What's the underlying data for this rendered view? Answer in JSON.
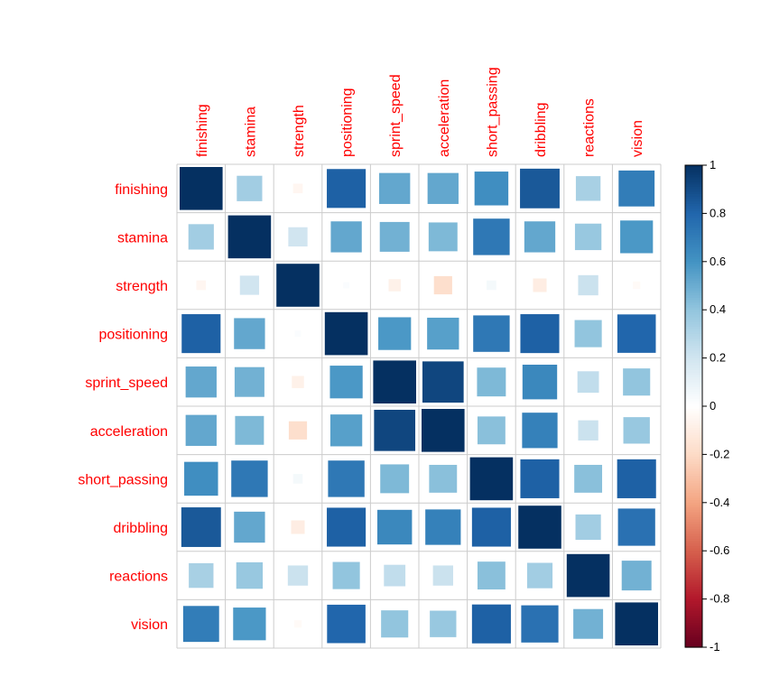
{
  "chart_data": {
    "type": "heatmap",
    "title": "",
    "variables": [
      "finishing",
      "stamina",
      "strength",
      "positioning",
      "sprint_speed",
      "acceleration",
      "short_passing",
      "dribbling",
      "reactions",
      "vision"
    ],
    "matrix": [
      [
        1.0,
        0.35,
        -0.05,
        0.82,
        0.52,
        0.52,
        0.62,
        0.85,
        0.33,
        0.7
      ],
      [
        0.35,
        1.0,
        0.2,
        0.52,
        0.48,
        0.45,
        0.72,
        0.52,
        0.38,
        0.58
      ],
      [
        -0.05,
        0.2,
        1.0,
        0.02,
        -0.08,
        -0.18,
        0.05,
        -0.1,
        0.22,
        -0.03
      ],
      [
        0.82,
        0.52,
        0.02,
        1.0,
        0.58,
        0.55,
        0.72,
        0.82,
        0.4,
        0.8
      ],
      [
        0.52,
        0.48,
        -0.08,
        0.58,
        1.0,
        0.92,
        0.45,
        0.65,
        0.25,
        0.4
      ],
      [
        0.52,
        0.45,
        -0.18,
        0.55,
        0.92,
        1.0,
        0.42,
        0.68,
        0.22,
        0.38
      ],
      [
        0.62,
        0.72,
        0.05,
        0.72,
        0.45,
        0.42,
        1.0,
        0.82,
        0.42,
        0.82
      ],
      [
        0.85,
        0.52,
        -0.1,
        0.82,
        0.65,
        0.68,
        0.82,
        1.0,
        0.35,
        0.75
      ],
      [
        0.33,
        0.38,
        0.22,
        0.4,
        0.25,
        0.22,
        0.42,
        0.35,
        1.0,
        0.48
      ],
      [
        0.7,
        0.58,
        -0.03,
        0.8,
        0.4,
        0.38,
        0.82,
        0.75,
        0.48,
        1.0
      ]
    ],
    "colorbar": {
      "ticks": [
        "1",
        "0.8",
        "0.6",
        "0.4",
        "0.2",
        "0",
        "-0.2",
        "-0.4",
        "-0.6",
        "-0.8",
        "-1"
      ],
      "range": [
        -1,
        1
      ]
    },
    "colors": {
      "label": "#ff0000",
      "grid": "#cccccc",
      "scale": [
        "#67001f",
        "#b2182b",
        "#d6604d",
        "#f4a582",
        "#fddbc7",
        "#ffffff",
        "#d1e5f0",
        "#92c5de",
        "#4393c3",
        "#2166ac",
        "#053061"
      ]
    }
  }
}
